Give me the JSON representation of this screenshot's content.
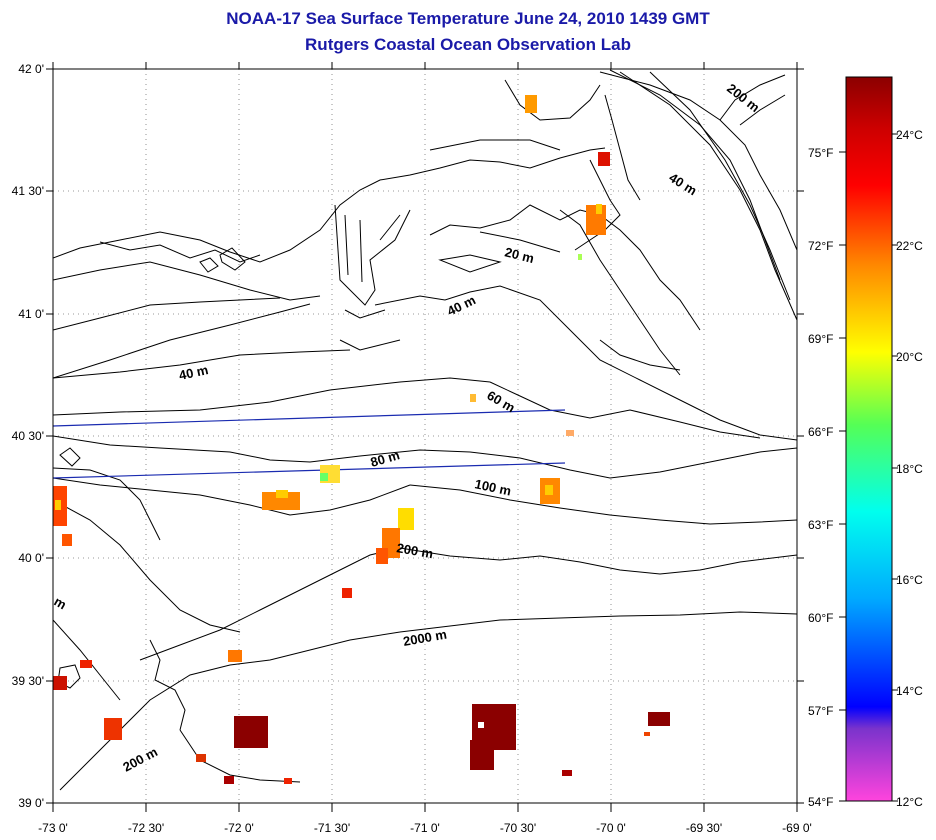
{
  "title": "NOAA-17 Sea Surface Temperature June 24, 2010 1439 GMT",
  "subtitle": "Rutgers Coastal Ocean Observation Lab",
  "map": {
    "lon_range": [
      -73,
      -69
    ],
    "lat_range": [
      39,
      42
    ],
    "lon_ticks": [
      "-73 0'",
      "-72 30'",
      "-72 0'",
      "-71 30'",
      "-71 0'",
      "-70 30'",
      "-70 0'",
      "-69 30'",
      "-69 0'"
    ],
    "lat_ticks": [
      "42 0'",
      "41 30'",
      "41 0'",
      "40 30'",
      "40 0'",
      "39 30'",
      "39 0'"
    ],
    "grid": "dotted"
  },
  "depth_labels": [
    "200 m",
    "40 m",
    "20 m",
    "40 m",
    "40 m",
    "60 m",
    "80 m",
    "100 m",
    "200 m",
    "2000 m",
    "200 m",
    "m"
  ],
  "colorbar": {
    "fahrenheit_labels": [
      "75°F",
      "72°F",
      "69°F",
      "66°F",
      "63°F",
      "60°F",
      "57°F",
      "54°F"
    ],
    "celsius_labels": [
      "24°C",
      "22°C",
      "20°C",
      "18°C",
      "16°C",
      "14°C",
      "12°C"
    ],
    "colors": [
      "#ff44dd",
      "#7a33cc",
      "#0000ff",
      "#00aaff",
      "#00ffee",
      "#55ff55",
      "#ffff00",
      "#ff8800",
      "#ff0000",
      "#cc0000",
      "#8b0000"
    ]
  }
}
